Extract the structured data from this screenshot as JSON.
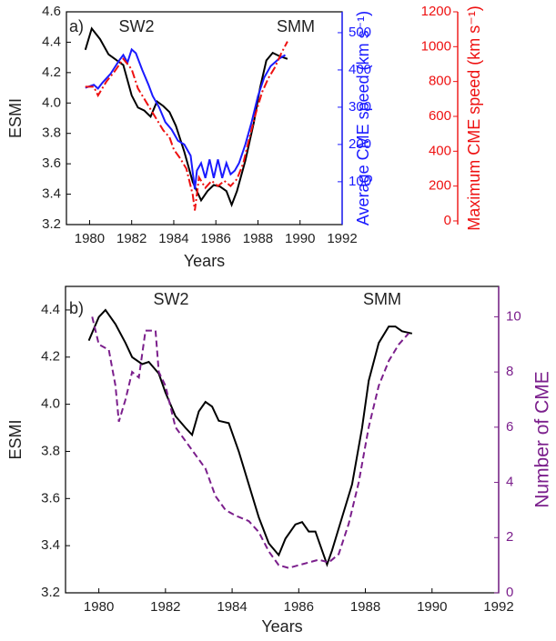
{
  "chart_data": [
    {
      "type": "line",
      "label": "a)",
      "annotations": [
        "SW2",
        "SMM"
      ],
      "xlabel": "Years",
      "ylabel": "ESMI",
      "y2label": "Average CME speed (km s⁻¹)",
      "y3label": "Maximum CME speed (km s⁻¹)",
      "xlim": [
        1978.9,
        1992
      ],
      "xticks": [
        1980,
        1982,
        1984,
        1986,
        1988,
        1990,
        1992
      ],
      "ylim": [
        3.2,
        4.6
      ],
      "yticks": [
        3.2,
        3.4,
        3.6,
        3.8,
        {
          "value": 4,
          "label": "4.0"
        },
        4.2,
        4.4,
        4.6
      ],
      "y2lim": [
        -15,
        556
      ],
      "y2ticks": [
        100,
        200,
        300,
        400,
        500
      ],
      "y3lim": [
        -21,
        1200
      ],
      "y3ticks": [
        0,
        200,
        400,
        600,
        800,
        1000,
        1200
      ],
      "series": [
        {
          "color": "#000000",
          "style": "solid",
          "axis": "y",
          "x": [
            1979.8,
            1980.1,
            1980.5,
            1980.9,
            1981.3,
            1981.6,
            1982.0,
            1982.3,
            1982.6,
            1982.9,
            1983.2,
            1983.5,
            1983.8,
            1984.1,
            1984.5,
            1984.9,
            1985.3,
            1985.6,
            1985.9,
            1986.2,
            1986.5,
            1986.75,
            1987.0,
            1987.4,
            1987.8,
            1988.1,
            1988.4,
            1988.7,
            1989.0,
            1989.4
          ],
          "values": [
            4.35,
            4.49,
            4.42,
            4.32,
            4.28,
            4.25,
            4.05,
            3.97,
            3.95,
            3.91,
            4.01,
            3.98,
            3.94,
            3.85,
            3.68,
            3.48,
            3.36,
            3.42,
            3.46,
            3.45,
            3.42,
            3.33,
            3.42,
            3.62,
            3.87,
            4.1,
            4.28,
            4.33,
            4.31,
            4.29
          ]
        },
        {
          "color": "#1a1aff",
          "style": "solid",
          "axis": "y2",
          "x": [
            1979.8,
            1980.2,
            1980.4,
            1980.6,
            1981.0,
            1981.4,
            1981.6,
            1981.8,
            1982.0,
            1982.2,
            1982.5,
            1982.8,
            1983.0,
            1983.3,
            1983.6,
            1983.9,
            1984.2,
            1984.5,
            1984.8,
            1985.0,
            1985.1,
            1985.3,
            1985.5,
            1985.7,
            1985.9,
            1986.1,
            1986.3,
            1986.5,
            1986.7,
            1986.9,
            1987.1,
            1987.4,
            1987.7,
            1988.0,
            1988.3,
            1988.6,
            1989.0,
            1989.3
          ],
          "values": [
            352,
            360,
            350,
            365,
            390,
            425,
            440,
            420,
            455,
            445,
            400,
            360,
            330,
            300,
            260,
            240,
            210,
            200,
            170,
            80,
            130,
            150,
            110,
            160,
            110,
            160,
            110,
            150,
            120,
            130,
            150,
            200,
            260,
            330,
            380,
            410,
            430,
            440
          ]
        },
        {
          "color": "#ee1111",
          "style": "dashdot",
          "axis": "y3",
          "x": [
            1979.8,
            1980.2,
            1980.4,
            1980.8,
            1981.2,
            1981.6,
            1981.8,
            1982.0,
            1982.3,
            1982.6,
            1982.9,
            1983.2,
            1983.5,
            1983.8,
            1984.0,
            1984.3,
            1984.6,
            1984.9,
            1985.0,
            1985.2,
            1985.5,
            1985.8,
            1986.1,
            1986.4,
            1986.7,
            1987.0,
            1987.3,
            1987.6,
            1987.9,
            1988.2,
            1988.5,
            1988.8,
            1989.1,
            1989.4
          ],
          "values": [
            770,
            770,
            720,
            800,
            860,
            930,
            900,
            870,
            760,
            700,
            640,
            580,
            520,
            480,
            410,
            360,
            300,
            150,
            60,
            250,
            190,
            230,
            200,
            230,
            200,
            240,
            330,
            480,
            620,
            740,
            820,
            880,
            960,
            1030
          ]
        }
      ]
    },
    {
      "type": "line",
      "label": "b)",
      "annotations": [
        "SW2",
        "SMM"
      ],
      "xlabel": "Years",
      "ylabel": "ESMI",
      "y2label": "Number of CME",
      "xlim": [
        1979,
        1992
      ],
      "xticks": [
        1980,
        1982,
        1984,
        1986,
        1988,
        1990,
        1992
      ],
      "ylim": [
        3.2,
        4.5
      ],
      "yticks": [
        3.2,
        3.4,
        3.6,
        3.8,
        {
          "value": 4,
          "label": "4.0"
        },
        4.2,
        4.4
      ],
      "y2lim": [
        0,
        11.1
      ],
      "y2ticks": [
        0,
        2,
        4,
        6,
        8,
        10
      ],
      "series": [
        {
          "color": "#000000",
          "style": "solid",
          "axis": "y",
          "x": [
            1979.7,
            1980.0,
            1980.2,
            1980.5,
            1980.8,
            1981.0,
            1981.3,
            1981.5,
            1981.8,
            1982.0,
            1982.3,
            1982.6,
            1982.8,
            1983.0,
            1983.2,
            1983.4,
            1983.6,
            1983.9,
            1984.2,
            1984.5,
            1984.8,
            1985.1,
            1985.4,
            1985.6,
            1985.9,
            1986.1,
            1986.3,
            1986.5,
            1986.7,
            1986.85,
            1987.0,
            1987.3,
            1987.6,
            1987.9,
            1988.1,
            1988.4,
            1988.7,
            1988.9,
            1989.1,
            1989.4
          ],
          "values": [
            4.27,
            4.37,
            4.4,
            4.34,
            4.26,
            4.2,
            4.17,
            4.18,
            4.13,
            4.05,
            3.95,
            3.9,
            3.87,
            3.97,
            4.01,
            3.99,
            3.93,
            3.92,
            3.8,
            3.66,
            3.52,
            3.41,
            3.36,
            3.43,
            3.49,
            3.5,
            3.46,
            3.46,
            3.38,
            3.32,
            3.38,
            3.52,
            3.66,
            3.9,
            4.1,
            4.26,
            4.33,
            4.33,
            4.31,
            4.3
          ]
        },
        {
          "color": "#7b1f8c",
          "style": "dash",
          "axis": "y2",
          "x": [
            1979.8,
            1980.0,
            1980.3,
            1980.5,
            1980.6,
            1980.8,
            1981.0,
            1981.2,
            1981.4,
            1981.7,
            1981.8,
            1982.0,
            1982.3,
            1982.6,
            1982.9,
            1983.2,
            1983.5,
            1983.8,
            1984.1,
            1984.5,
            1984.8,
            1985.1,
            1985.4,
            1985.7,
            1986.0,
            1986.3,
            1986.6,
            1986.9,
            1987.2,
            1987.5,
            1987.8,
            1988.1,
            1988.4,
            1988.7,
            1989.0,
            1989.3
          ],
          "values": [
            10,
            9.0,
            8.8,
            7.5,
            6.2,
            7.0,
            8.0,
            7.8,
            9.5,
            9.5,
            8.0,
            7.5,
            6.0,
            5.5,
            5.0,
            4.5,
            3.5,
            3.0,
            2.8,
            2.6,
            2.2,
            1.5,
            1.0,
            0.9,
            1.0,
            1.1,
            1.2,
            1.1,
            1.4,
            2.5,
            4.0,
            6.0,
            7.5,
            8.4,
            9.0,
            9.4
          ]
        }
      ]
    }
  ]
}
